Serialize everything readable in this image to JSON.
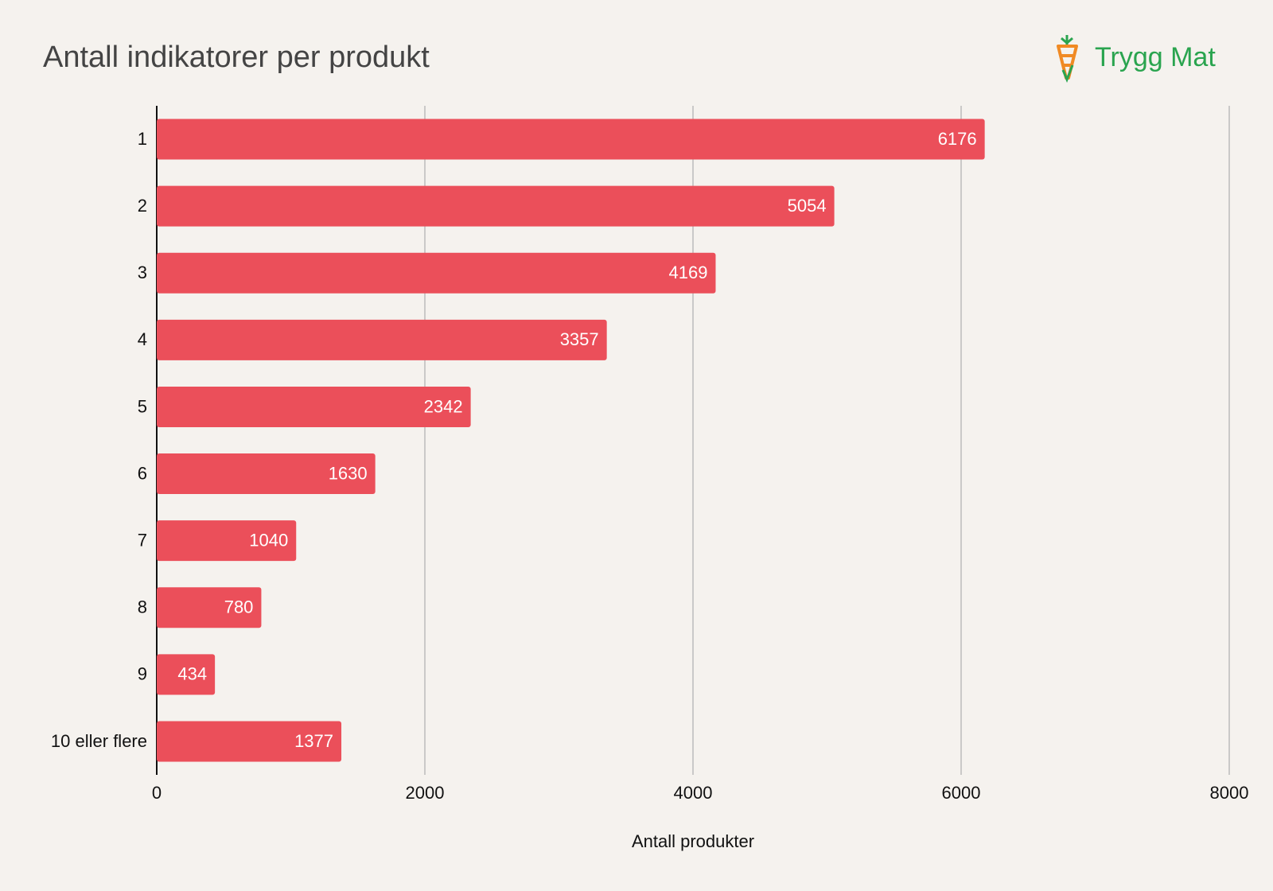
{
  "chart_data": {
    "type": "bar",
    "orientation": "horizontal",
    "title": "Antall indikatorer per produkt",
    "logo": "Trygg Mat",
    "x_label": "Antall produkter",
    "categories": [
      "1",
      "2",
      "3",
      "4",
      "5",
      "6",
      "7",
      "8",
      "9",
      "10 eller flere"
    ],
    "values": [
      6176,
      5054,
      4169,
      3357,
      2342,
      1630,
      1040,
      780,
      434,
      1377
    ],
    "color": "#eb4f5a",
    "xlim": [
      0,
      8000
    ],
    "xticks": [
      0,
      2000,
      4000,
      6000,
      8000
    ],
    "grid": true
  }
}
